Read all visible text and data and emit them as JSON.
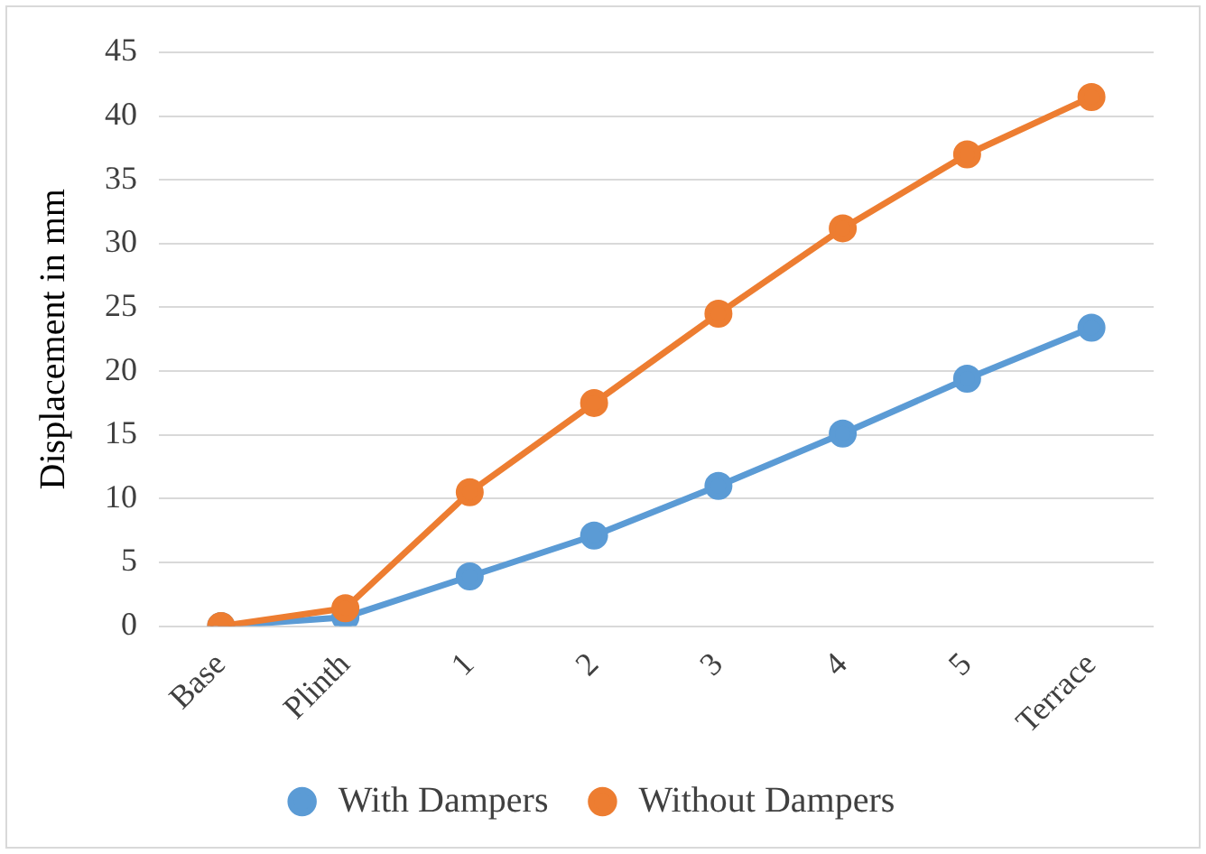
{
  "chart_data": {
    "type": "line",
    "ylabel": "Displacement in mm",
    "categories": [
      "Base",
      "Plinth",
      "1",
      "2",
      "3",
      "4",
      "5",
      "Terrace"
    ],
    "series": [
      {
        "name": "With Dampers",
        "color": "#5b9bd5",
        "values": [
          0,
          0.7,
          3.9,
          7.1,
          11.0,
          15.1,
          19.4,
          23.4
        ]
      },
      {
        "name": "Without Dampers",
        "color": "#ed7d31",
        "values": [
          0,
          1.4,
          10.5,
          17.5,
          24.5,
          31.2,
          37.0,
          41.5
        ]
      }
    ],
    "ylim": [
      0,
      45
    ],
    "yticks": [
      0,
      5,
      10,
      15,
      20,
      25,
      30,
      35,
      40,
      45
    ],
    "grid": "y",
    "legend": "bottom",
    "marker": "circle",
    "line_style": "solid"
  }
}
